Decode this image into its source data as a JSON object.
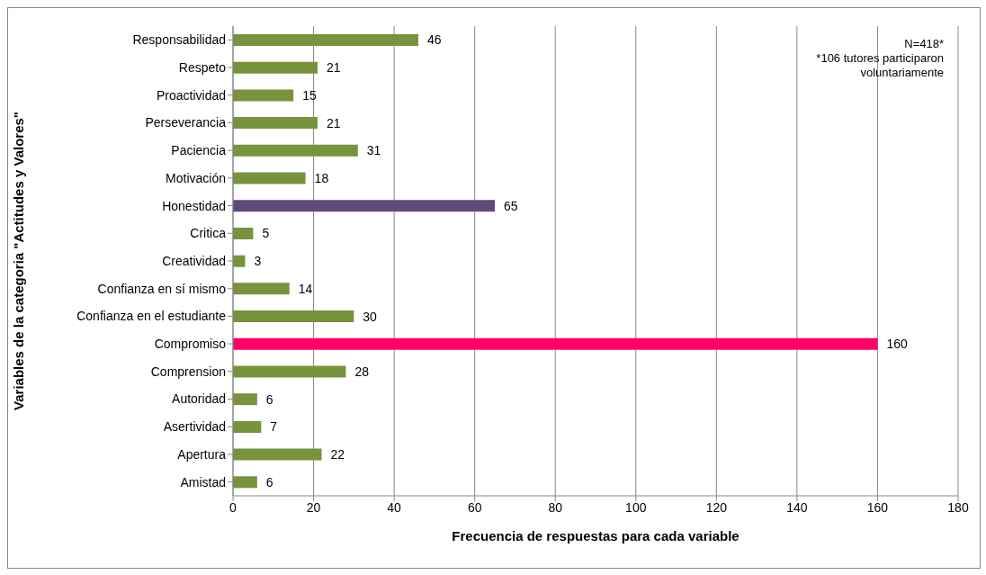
{
  "chart_data": {
    "type": "bar",
    "orientation": "horizontal",
    "xlabel": "Frecuencia  de respuestas  para cada variable",
    "ylabel": "Variables de la categoria  \"Actitudes y Valores\"",
    "categories": [
      "Responsabilidad",
      "Respeto",
      "Proactividad",
      "Perseverancia",
      "Paciencia",
      "Motivación",
      "Honestidad",
      "Critica",
      "Creatividad",
      "Confianza en sí mismo",
      "Confianza en el estudiante",
      "Compromiso",
      "Comprension",
      "Autoridad",
      "Asertividad",
      "Apertura",
      "Amistad"
    ],
    "values": [
      46,
      21,
      15,
      21,
      31,
      18,
      65,
      5,
      3,
      14,
      30,
      160,
      28,
      6,
      7,
      22,
      6
    ],
    "colors": [
      "#77933c",
      "#77933c",
      "#77933c",
      "#77933c",
      "#77933c",
      "#77933c",
      "#604a7b",
      "#77933c",
      "#77933c",
      "#77933c",
      "#77933c",
      "#ff0066",
      "#77933c",
      "#77933c",
      "#77933c",
      "#77933c",
      "#77933c"
    ],
    "xlim": [
      0,
      180
    ],
    "xticks": [
      0,
      20,
      40,
      60,
      80,
      100,
      120,
      140,
      160,
      180
    ],
    "grid": "x",
    "data_labels": true,
    "annotations": [
      "N=418*",
      "*106 tutores participaron voluntariamente"
    ]
  }
}
